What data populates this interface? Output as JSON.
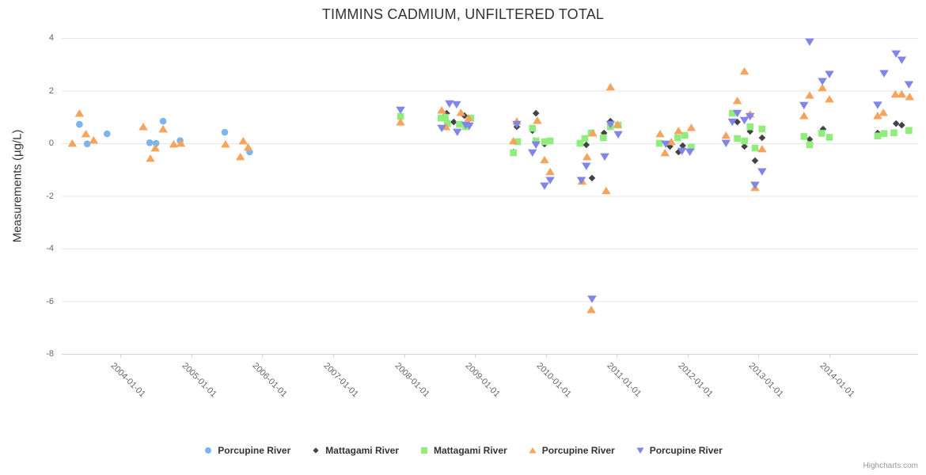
{
  "credits": "Highcharts.com",
  "colors": {
    "grid": "#e6e6e6",
    "axis_line": "#ccd6eb",
    "tick_label": "#666666",
    "title_text": "#333333",
    "credits_text": "#999999"
  },
  "chart_data": {
    "type": "scatter",
    "title": "TIMMINS CADMIUM, UNFILTERED TOTAL",
    "xlabel": "",
    "ylabel": "Measurements (µg/L)",
    "ylim": [
      -8,
      4
    ],
    "xlim": [
      2003.17,
      2015.25
    ],
    "y_ticks": [
      4,
      2,
      0,
      -2,
      -4,
      -6,
      -8
    ],
    "x_tick_years": [
      2004,
      2005,
      2006,
      2007,
      2008,
      2009,
      2010,
      2011,
      2012,
      2013,
      2014
    ],
    "x_tick_labels": [
      "2004-01-01",
      "2005-01-01",
      "2006-01-01",
      "2007-01-01",
      "2008-01-01",
      "2009-01-01",
      "2010-01-01",
      "2011-01-01",
      "2012-01-01",
      "2013-01-01",
      "2014-01-01"
    ],
    "grid": true,
    "legend_position": "bottom",
    "series": [
      {
        "name": "Porcupine River",
        "symbol": "circle",
        "color": "#7cb5ec",
        "points": [
          [
            2003.42,
            0.72
          ],
          [
            2003.53,
            -0.02
          ],
          [
            2003.81,
            0.36
          ],
          [
            2004.41,
            0.02
          ],
          [
            2004.5,
            0.0
          ],
          [
            2004.6,
            0.84
          ],
          [
            2004.84,
            0.1
          ],
          [
            2005.47,
            0.42
          ],
          [
            2005.82,
            -0.33
          ]
        ]
      },
      {
        "name": "Mattagami River",
        "symbol": "diamond",
        "color": "#434348",
        "points": [
          [
            2008.6,
            1.14
          ],
          [
            2008.7,
            0.81
          ],
          [
            2008.85,
            1.05
          ],
          [
            2009.54,
            -0.33
          ],
          [
            2009.59,
            0.63
          ],
          [
            2009.81,
            0.48
          ],
          [
            2009.86,
            1.14
          ],
          [
            2009.98,
            -0.03
          ],
          [
            2010.57,
            -0.06
          ],
          [
            2010.65,
            -1.32
          ],
          [
            2010.82,
            0.39
          ],
          [
            2010.91,
            0.84
          ],
          [
            2011.75,
            -0.12
          ],
          [
            2011.87,
            -0.33
          ],
          [
            2011.93,
            -0.09
          ],
          [
            2012.7,
            0.81
          ],
          [
            2012.8,
            -0.12
          ],
          [
            2012.88,
            0.45
          ],
          [
            2012.95,
            -0.66
          ],
          [
            2013.05,
            0.21
          ],
          [
            2013.72,
            0.15
          ],
          [
            2013.91,
            0.54
          ],
          [
            2014.68,
            0.39
          ],
          [
            2014.94,
            0.75
          ],
          [
            2015.02,
            0.69
          ]
        ]
      },
      {
        "name": "Mattagami River",
        "symbol": "square",
        "color": "#90ed7d",
        "points": [
          [
            2007.95,
            1.02
          ],
          [
            2008.52,
            0.96
          ],
          [
            2008.58,
            0.99
          ],
          [
            2008.61,
            0.75
          ],
          [
            2008.78,
            0.72
          ],
          [
            2008.87,
            0.63
          ],
          [
            2008.94,
            0.96
          ],
          [
            2009.54,
            -0.36
          ],
          [
            2009.6,
            0.06
          ],
          [
            2009.81,
            0.57
          ],
          [
            2009.86,
            0.09
          ],
          [
            2009.98,
            0.06
          ],
          [
            2010.06,
            0.09
          ],
          [
            2010.48,
            0.0
          ],
          [
            2010.55,
            0.18
          ],
          [
            2010.64,
            0.39
          ],
          [
            2010.81,
            0.21
          ],
          [
            2010.91,
            0.63
          ],
          [
            2011.02,
            0.69
          ],
          [
            2011.6,
            0.0
          ],
          [
            2011.86,
            0.21
          ],
          [
            2011.96,
            0.3
          ],
          [
            2012.05,
            -0.15
          ],
          [
            2012.63,
            1.14
          ],
          [
            2012.7,
            0.18
          ],
          [
            2012.8,
            0.09
          ],
          [
            2012.88,
            0.63
          ],
          [
            2012.95,
            -0.18
          ],
          [
            2013.05,
            0.54
          ],
          [
            2013.64,
            0.26
          ],
          [
            2013.72,
            -0.05
          ],
          [
            2013.89,
            0.38
          ],
          [
            2014.0,
            0.23
          ],
          [
            2014.68,
            0.28
          ],
          [
            2014.77,
            0.37
          ],
          [
            2014.91,
            0.4
          ],
          [
            2015.12,
            0.49
          ]
        ]
      },
      {
        "name": "Porcupine River",
        "symbol": "triangle",
        "color": "#f7a35c",
        "points": [
          [
            2003.32,
            0.0
          ],
          [
            2003.42,
            1.14
          ],
          [
            2003.51,
            0.36
          ],
          [
            2003.62,
            0.12
          ],
          [
            2004.32,
            0.63
          ],
          [
            2004.42,
            -0.57
          ],
          [
            2004.49,
            -0.18
          ],
          [
            2004.6,
            0.54
          ],
          [
            2004.75,
            -0.03
          ],
          [
            2004.85,
            0.0
          ],
          [
            2005.48,
            -0.03
          ],
          [
            2005.69,
            -0.51
          ],
          [
            2005.73,
            0.09
          ],
          [
            2005.8,
            -0.15
          ],
          [
            2007.95,
            0.81
          ],
          [
            2008.53,
            1.26
          ],
          [
            2008.59,
            0.63
          ],
          [
            2008.8,
            1.17
          ],
          [
            2008.91,
            0.96
          ],
          [
            2009.54,
            0.09
          ],
          [
            2009.59,
            0.84
          ],
          [
            2009.88,
            0.87
          ],
          [
            2009.98,
            -0.63
          ],
          [
            2010.06,
            -1.08
          ],
          [
            2010.51,
            -1.44
          ],
          [
            2010.58,
            -0.51
          ],
          [
            2010.64,
            -6.32
          ],
          [
            2010.66,
            0.39
          ],
          [
            2010.85,
            -1.8
          ],
          [
            2010.91,
            2.14
          ],
          [
            2011.01,
            0.72
          ],
          [
            2011.61,
            0.36
          ],
          [
            2011.68,
            -0.36
          ],
          [
            2011.77,
            0.06
          ],
          [
            2011.87,
            0.48
          ],
          [
            2012.05,
            0.6
          ],
          [
            2012.54,
            0.3
          ],
          [
            2012.7,
            1.62
          ],
          [
            2012.8,
            2.74
          ],
          [
            2012.88,
            1.11
          ],
          [
            2012.95,
            -1.68
          ],
          [
            2013.05,
            -0.21
          ],
          [
            2013.64,
            1.05
          ],
          [
            2013.72,
            1.83
          ],
          [
            2013.9,
            2.11
          ],
          [
            2014.0,
            1.68
          ],
          [
            2014.68,
            1.05
          ],
          [
            2014.76,
            1.17
          ],
          [
            2014.93,
            1.87
          ],
          [
            2015.02,
            1.87
          ],
          [
            2015.13,
            1.77
          ]
        ]
      },
      {
        "name": "Porcupine River",
        "symbol": "triangle-down",
        "color": "#8085e9",
        "points": [
          [
            2007.95,
            1.26
          ],
          [
            2008.53,
            0.57
          ],
          [
            2008.64,
            1.5
          ],
          [
            2008.74,
            1.47
          ],
          [
            2008.75,
            0.42
          ],
          [
            2008.87,
            0.69
          ],
          [
            2008.92,
            0.66
          ],
          [
            2009.59,
            0.72
          ],
          [
            2009.81,
            -0.36
          ],
          [
            2009.86,
            -0.06
          ],
          [
            2009.98,
            -1.62
          ],
          [
            2010.06,
            -1.41
          ],
          [
            2010.5,
            -1.41
          ],
          [
            2010.57,
            -0.87
          ],
          [
            2010.65,
            -5.92
          ],
          [
            2010.83,
            -0.51
          ],
          [
            2010.91,
            0.72
          ],
          [
            2011.02,
            0.33
          ],
          [
            2011.69,
            -0.03
          ],
          [
            2011.92,
            -0.3
          ],
          [
            2012.03,
            -0.33
          ],
          [
            2012.54,
            0.0
          ],
          [
            2012.63,
            0.81
          ],
          [
            2012.7,
            1.14
          ],
          [
            2012.8,
            0.87
          ],
          [
            2012.88,
            1.02
          ],
          [
            2012.95,
            -1.59
          ],
          [
            2013.05,
            -1.08
          ],
          [
            2013.64,
            1.44
          ],
          [
            2013.72,
            3.85
          ],
          [
            2013.9,
            2.35
          ],
          [
            2014.0,
            2.62
          ],
          [
            2014.68,
            1.45
          ],
          [
            2014.77,
            2.65
          ],
          [
            2014.94,
            3.4
          ],
          [
            2015.02,
            3.16
          ],
          [
            2015.12,
            2.23
          ]
        ]
      }
    ]
  }
}
